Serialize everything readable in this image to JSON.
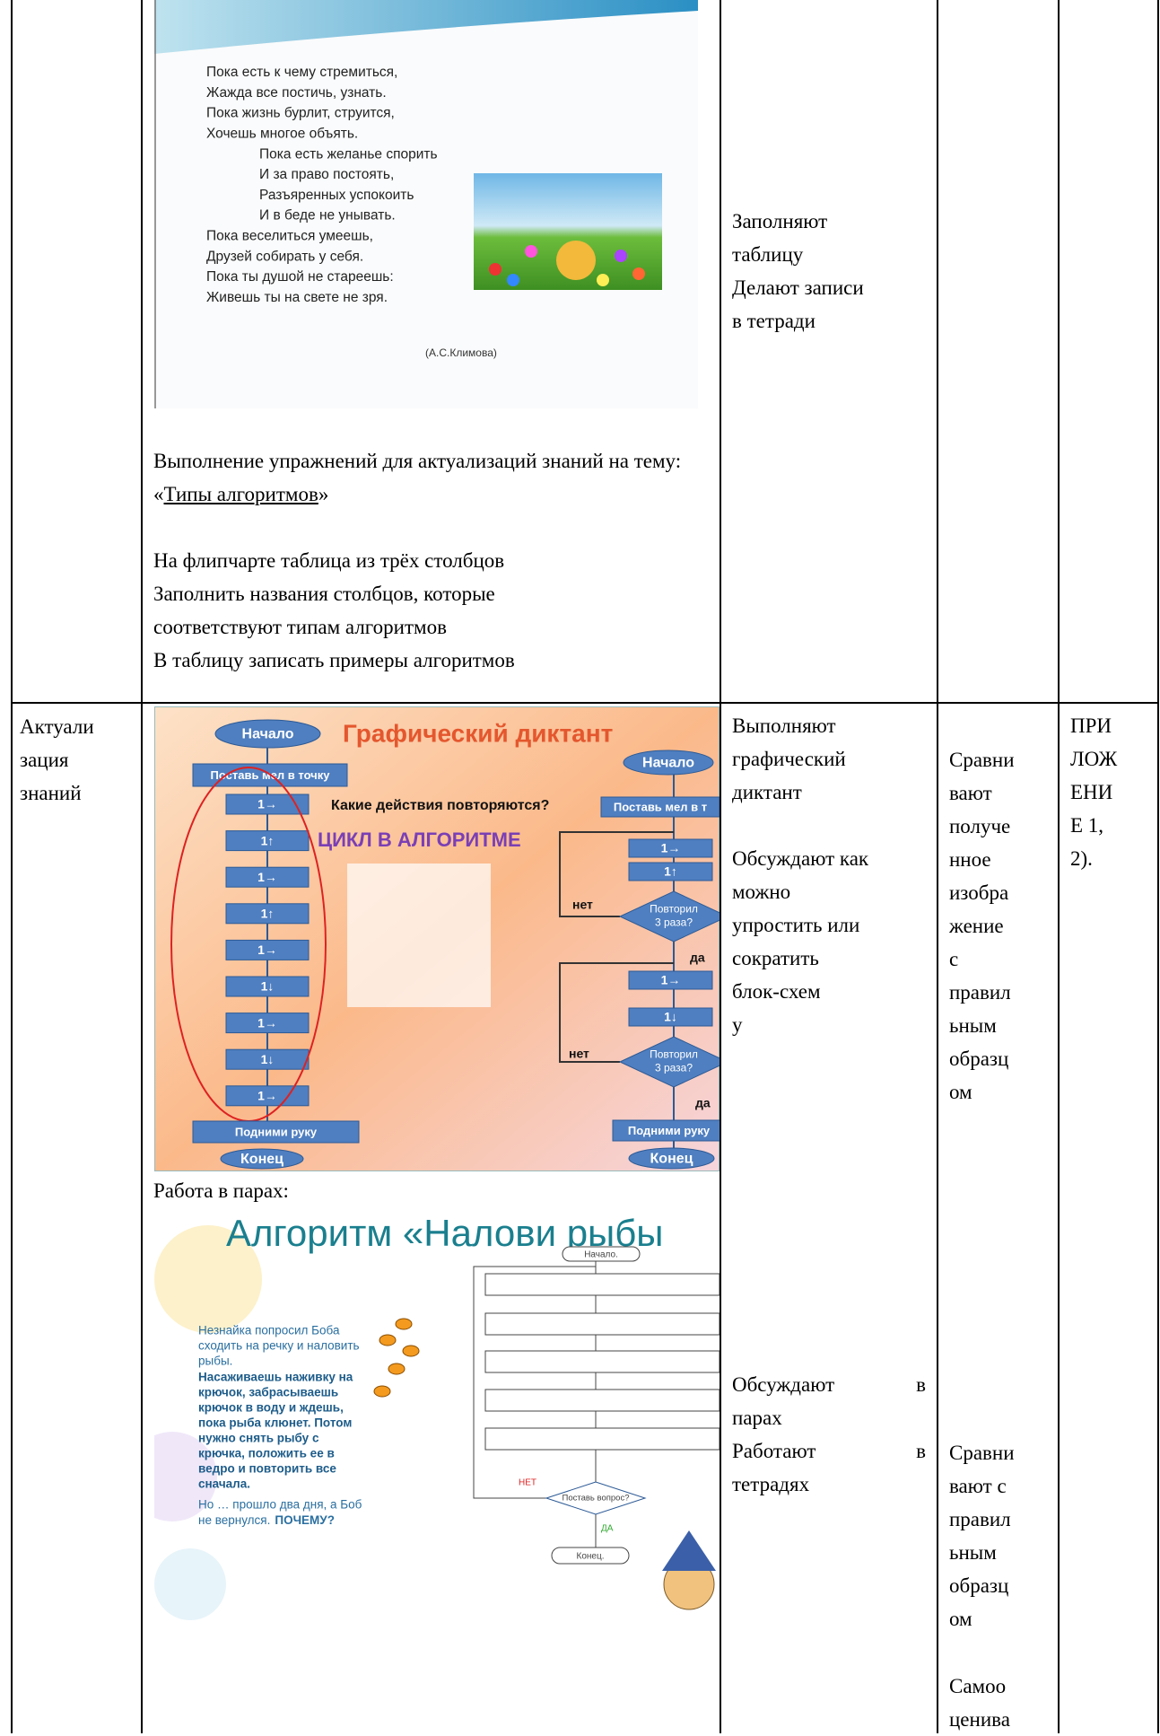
{
  "row1": {
    "slide": {
      "first": [
        "Пока есть к чему стремиться,",
        "Жажда все постичь, узнать.",
        "Пока жизнь бурлит, струится,",
        "Хочешь многое объять."
      ],
      "indented": [
        "Пока есть желанье спорить",
        "И за право постоять,",
        "Разъяренных успокоить",
        "И в беде не унывать."
      ],
      "last": [
        "Пока веселиться умеешь,",
        "Друзей собирать у себя.",
        "Пока ты душой не стареешь:",
        "Живешь ты на свете не зря."
      ],
      "author": "(А.С.Климова)"
    },
    "task": {
      "before": "Выполнение упражнений для актуализаций знаний на тему: «",
      "link": "Типы алгоритмов",
      "after": "»"
    },
    "instructions": [
      "На флипчарте таблица из трёх столбцов",
      "Заполнить названия столбцов, которые",
      "соответствуют типам алгоритмов",
      "В таблицу записать примеры алгоритмов"
    ],
    "activity": [
      "Заполняют",
      "таблицу",
      "Делают записи",
      "в тетради"
    ]
  },
  "row2": {
    "stage": [
      "Актуали",
      "зация",
      "знаний"
    ],
    "dictation": {
      "title": "Графический диктант",
      "start": "Начало",
      "chalk": "Поставь мел в точку",
      "steps": [
        "1→",
        "1↑",
        "1→",
        "1↑",
        "1→",
        "1↓",
        "1→",
        "1↓",
        "1→"
      ],
      "question": "Какие действия повторяются?",
      "cycle": "ЦИКЛ В АЛГОРИТМЕ",
      "raise": "Подними руку",
      "end": "Конец",
      "right": {
        "start": "Начало",
        "chalk": "Поставь мел в т",
        "steps1": [
          "1→",
          "1↑"
        ],
        "check1": [
          "Повторил",
          "3 раза?"
        ],
        "no1": "нет",
        "yes1": "да",
        "steps2": [
          "1→",
          "1↓"
        ],
        "check2": [
          "Повторил",
          "3 раза?"
        ],
        "no2": "нет",
        "yes2": "да",
        "raise": "Подними руку",
        "end": "Конец"
      }
    },
    "pairs": "Работа в парах:",
    "fishing": {
      "title": "Алгоритм «Налови рыбы",
      "task": [
        "Незнайка попросил Боба",
        "сходить на речку и наловить",
        "рыбы."
      ],
      "method": [
        "Насаживаешь наживку на",
        "крючок, забрасываешь",
        "крючок в воду и ждешь,",
        "пока рыба клюнет. Потом",
        "нужно снять рыбу с",
        "крючка, положить ее в",
        "ведро и повторить все",
        "сначала."
      ],
      "ending": "Но … прошло два дня, а Боб",
      "ending2": "не вернулся.",
      "emphasis": "ПОЧЕМУ?",
      "start": "Начало.",
      "check": "Поставь вопрос?",
      "no": "НЕТ",
      "yes": "ДА",
      "end": "Конец."
    },
    "activity1": [
      "Выполняют",
      "графический",
      "диктант"
    ],
    "activity2": [
      "Обсуждают как",
      "можно",
      "упростить или",
      "сократить",
      "блок-схем",
      "у"
    ],
    "activity3": [
      "Обсуждают в",
      "парах",
      "Работают в",
      "тетрадях"
    ],
    "control1": [
      "Сравни",
      "вают",
      "получе",
      "нное",
      "изобра",
      "жение",
      "с",
      "правил",
      "ьным",
      "образц",
      "ом"
    ],
    "control2": [
      "Сравни",
      "вают с",
      "правил",
      "ьным",
      "образц",
      "ом"
    ],
    "control3": [
      "Самоо",
      "ценива"
    ],
    "appendix": [
      "ПРИ",
      "ЛОЖ",
      "ЕНИ",
      "Е 1,",
      "2)."
    ]
  }
}
